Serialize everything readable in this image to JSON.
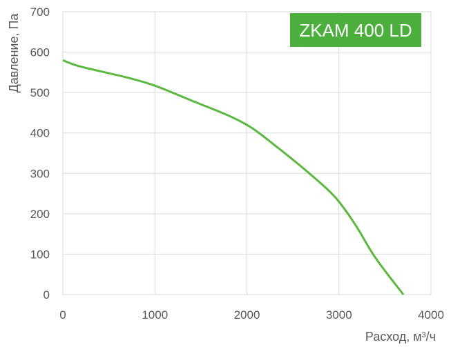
{
  "chart_data": {
    "type": "line",
    "badge": "ZKAM 400 LD",
    "xlabel": "Расход, м³/ч",
    "ylabel": "Давление, Па",
    "xlim": [
      0,
      4000
    ],
    "ylim": [
      0,
      700
    ],
    "xticks": [
      "0",
      "1000",
      "2000",
      "3000",
      "4000"
    ],
    "yticks": [
      "0",
      "100",
      "200",
      "300",
      "400",
      "500",
      "600",
      "700"
    ],
    "grid": true,
    "colors": {
      "line": "#5bb83e",
      "badge": "#4caf3d",
      "grid": "#d9d9d9",
      "text": "#595959"
    },
    "series": [
      {
        "x": [
          0,
          150,
          400,
          700,
          1000,
          1400,
          1800,
          2050,
          2300,
          2600,
          2900,
          3050,
          3200,
          3400,
          3700
        ],
        "y": [
          580,
          567,
          553,
          537,
          517,
          480,
          443,
          413,
          370,
          315,
          255,
          215,
          165,
          90,
          0
        ]
      }
    ]
  }
}
